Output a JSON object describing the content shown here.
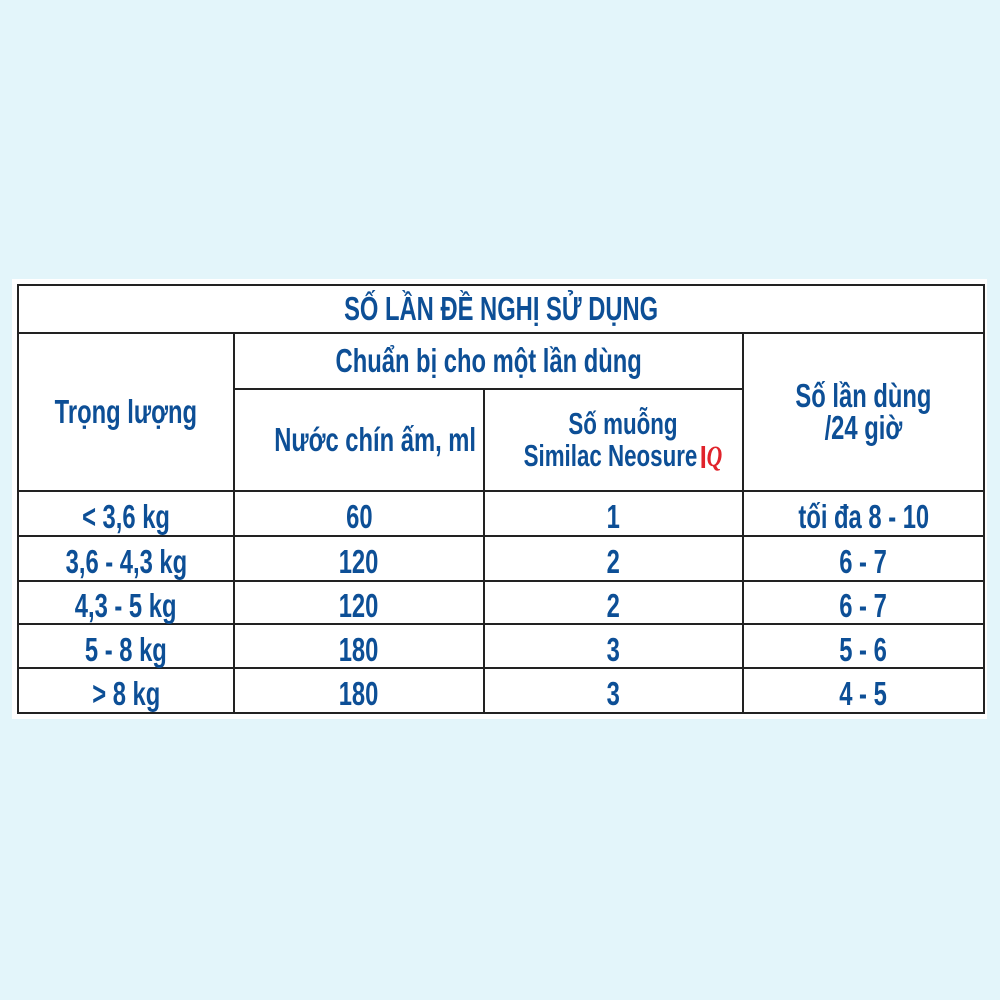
{
  "title": "SỐ LẦN ĐỀ NGHỊ SỬ DỤNG",
  "headers": {
    "weight": "Trọng lượng",
    "prep_group": "Chuẩn bị cho một lần dùng",
    "water": "Nước chín ấm, ml",
    "scoops_line1": "Số muỗng",
    "scoops_line2": "Similac Neosure",
    "scoops_logo": "IQ",
    "times_line1": "Số lần dùng",
    "times_line2": "/24 giờ"
  },
  "colors": {
    "text": "#0d4f96",
    "logo": "#e0232b",
    "background": "#e3f5fa"
  },
  "rows": [
    {
      "weight": "< 3,6 kg",
      "water": "60",
      "scoops": "1",
      "times": "tối đa 8 - 10"
    },
    {
      "weight": "3,6 - 4,3 kg",
      "water": "120",
      "scoops": "2",
      "times": "6 - 7"
    },
    {
      "weight": "4,3 - 5 kg",
      "water": "120",
      "scoops": "2",
      "times": "6 - 7"
    },
    {
      "weight": "5 - 8 kg",
      "water": "180",
      "scoops": "3",
      "times": "5 - 6"
    },
    {
      "weight": "> 8 kg",
      "water": "180",
      "scoops": "3",
      "times": "4 - 5"
    }
  ]
}
